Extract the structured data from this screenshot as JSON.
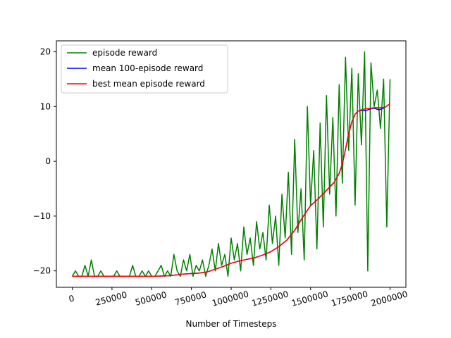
{
  "chart_data": {
    "type": "line",
    "title": "",
    "xlabel": "Number of Timesteps",
    "ylabel": "",
    "xlim": [
      -100000,
      2100000
    ],
    "ylim": [
      -23,
      22
    ],
    "grid": false,
    "legend_position": "top-left",
    "x_ticks": [
      0,
      250000,
      500000,
      750000,
      1000000,
      1250000,
      1500000,
      1750000,
      2000000
    ],
    "x_tick_labels": [
      "0",
      "250000",
      "500000",
      "750000",
      "1000000",
      "1250000",
      "1500000",
      "1750000",
      "2000000"
    ],
    "x_tick_rotation_deg": -15,
    "y_ticks": [
      -20,
      -10,
      0,
      10,
      20
    ],
    "y_tick_labels": [
      "−20",
      "−10",
      "0",
      "10",
      "20"
    ],
    "series": [
      {
        "name": "episode reward",
        "color": "#008000",
        "x": [
          0,
          20000,
          40000,
          60000,
          80000,
          100000,
          120000,
          140000,
          160000,
          180000,
          200000,
          220000,
          240000,
          260000,
          280000,
          300000,
          320000,
          340000,
          360000,
          380000,
          400000,
          420000,
          440000,
          460000,
          480000,
          500000,
          520000,
          540000,
          560000,
          580000,
          600000,
          620000,
          640000,
          660000,
          680000,
          700000,
          720000,
          740000,
          760000,
          780000,
          800000,
          820000,
          840000,
          860000,
          880000,
          900000,
          920000,
          940000,
          960000,
          980000,
          1000000,
          1020000,
          1040000,
          1060000,
          1080000,
          1100000,
          1120000,
          1140000,
          1160000,
          1180000,
          1200000,
          1220000,
          1240000,
          1260000,
          1280000,
          1300000,
          1320000,
          1340000,
          1360000,
          1380000,
          1400000,
          1420000,
          1440000,
          1460000,
          1480000,
          1500000,
          1520000,
          1540000,
          1560000,
          1580000,
          1600000,
          1620000,
          1640000,
          1660000,
          1680000,
          1700000,
          1720000,
          1740000,
          1760000,
          1780000,
          1800000,
          1820000,
          1840000,
          1860000,
          1880000,
          1900000,
          1920000,
          1940000,
          1960000,
          1980000,
          2000000
        ],
        "values": [
          -21,
          -20,
          -21,
          -21,
          -19,
          -21,
          -18,
          -21,
          -21,
          -20,
          -21,
          -21,
          -21,
          -21,
          -20,
          -21,
          -21,
          -21,
          -21,
          -19,
          -21,
          -21,
          -20,
          -21,
          -20,
          -21,
          -21,
          -20,
          -19,
          -21,
          -20,
          -21,
          -17,
          -20,
          -21,
          -18,
          -20,
          -17,
          -21,
          -19,
          -20,
          -18,
          -21,
          -19,
          -16,
          -20,
          -15,
          -19,
          -17,
          -21,
          -14,
          -18,
          -15,
          -20,
          -12,
          -17,
          -14,
          -19,
          -11,
          -16,
          -13,
          -18,
          -8,
          -15,
          -10,
          -19,
          -6,
          -14,
          -2,
          -17,
          4,
          -13,
          -5,
          -18,
          10,
          -8,
          2,
          -16,
          7,
          -12,
          12,
          -6,
          8,
          -10,
          14,
          -4,
          19,
          2,
          17,
          -8,
          16,
          3,
          20,
          -20,
          18,
          10,
          13,
          6,
          15,
          -12,
          15
        ]
      },
      {
        "name": "mean 100-episode reward",
        "color": "#0000ff",
        "x": [
          0,
          100000,
          200000,
          300000,
          400000,
          500000,
          600000,
          700000,
          800000,
          850000,
          900000,
          950000,
          1000000,
          1050000,
          1100000,
          1150000,
          1200000,
          1250000,
          1300000,
          1350000,
          1400000,
          1450000,
          1500000,
          1550000,
          1600000,
          1650000,
          1680000,
          1700000,
          1720000,
          1740000,
          1760000,
          1780000,
          1800000,
          1820000,
          1850000,
          1880000,
          1900000,
          1930000,
          1950000,
          1970000,
          2000000
        ],
        "values": [
          -21,
          -21,
          -21,
          -21,
          -21,
          -21,
          -20.9,
          -20.6,
          -20.4,
          -20.2,
          -19.7,
          -19.2,
          -18.6,
          -18.2,
          -17.9,
          -17.6,
          -17.1,
          -16.5,
          -15.6,
          -14.4,
          -12.6,
          -10.2,
          -8.1,
          -6.8,
          -5.3,
          -3.8,
          -2.2,
          -0.5,
          2.2,
          5.0,
          7.2,
          8.6,
          9.2,
          9.3,
          9.3,
          9.6,
          9.7,
          9.4,
          9.6,
          9.9,
          10.5
        ]
      },
      {
        "name": "best mean episode reward",
        "color": "#ff0000",
        "x": [
          0,
          100000,
          200000,
          300000,
          400000,
          500000,
          600000,
          700000,
          800000,
          850000,
          900000,
          950000,
          1000000,
          1050000,
          1100000,
          1150000,
          1200000,
          1250000,
          1300000,
          1350000,
          1400000,
          1450000,
          1500000,
          1550000,
          1600000,
          1650000,
          1680000,
          1700000,
          1720000,
          1740000,
          1760000,
          1780000,
          1800000,
          1820000,
          1850000,
          1880000,
          1900000,
          1930000,
          1950000,
          1970000,
          2000000
        ],
        "values": [
          -21,
          -21,
          -21,
          -21,
          -21,
          -21,
          -20.9,
          -20.6,
          -20.4,
          -20.2,
          -19.7,
          -19.2,
          -18.6,
          -18.2,
          -17.9,
          -17.6,
          -17.1,
          -16.5,
          -15.6,
          -14.4,
          -12.6,
          -10.2,
          -8.1,
          -6.8,
          -5.3,
          -3.8,
          -2.2,
          -0.5,
          2.2,
          5.0,
          7.2,
          8.6,
          9.2,
          9.4,
          9.6,
          9.7,
          9.8,
          9.8,
          9.8,
          9.9,
          10.5
        ]
      }
    ]
  }
}
